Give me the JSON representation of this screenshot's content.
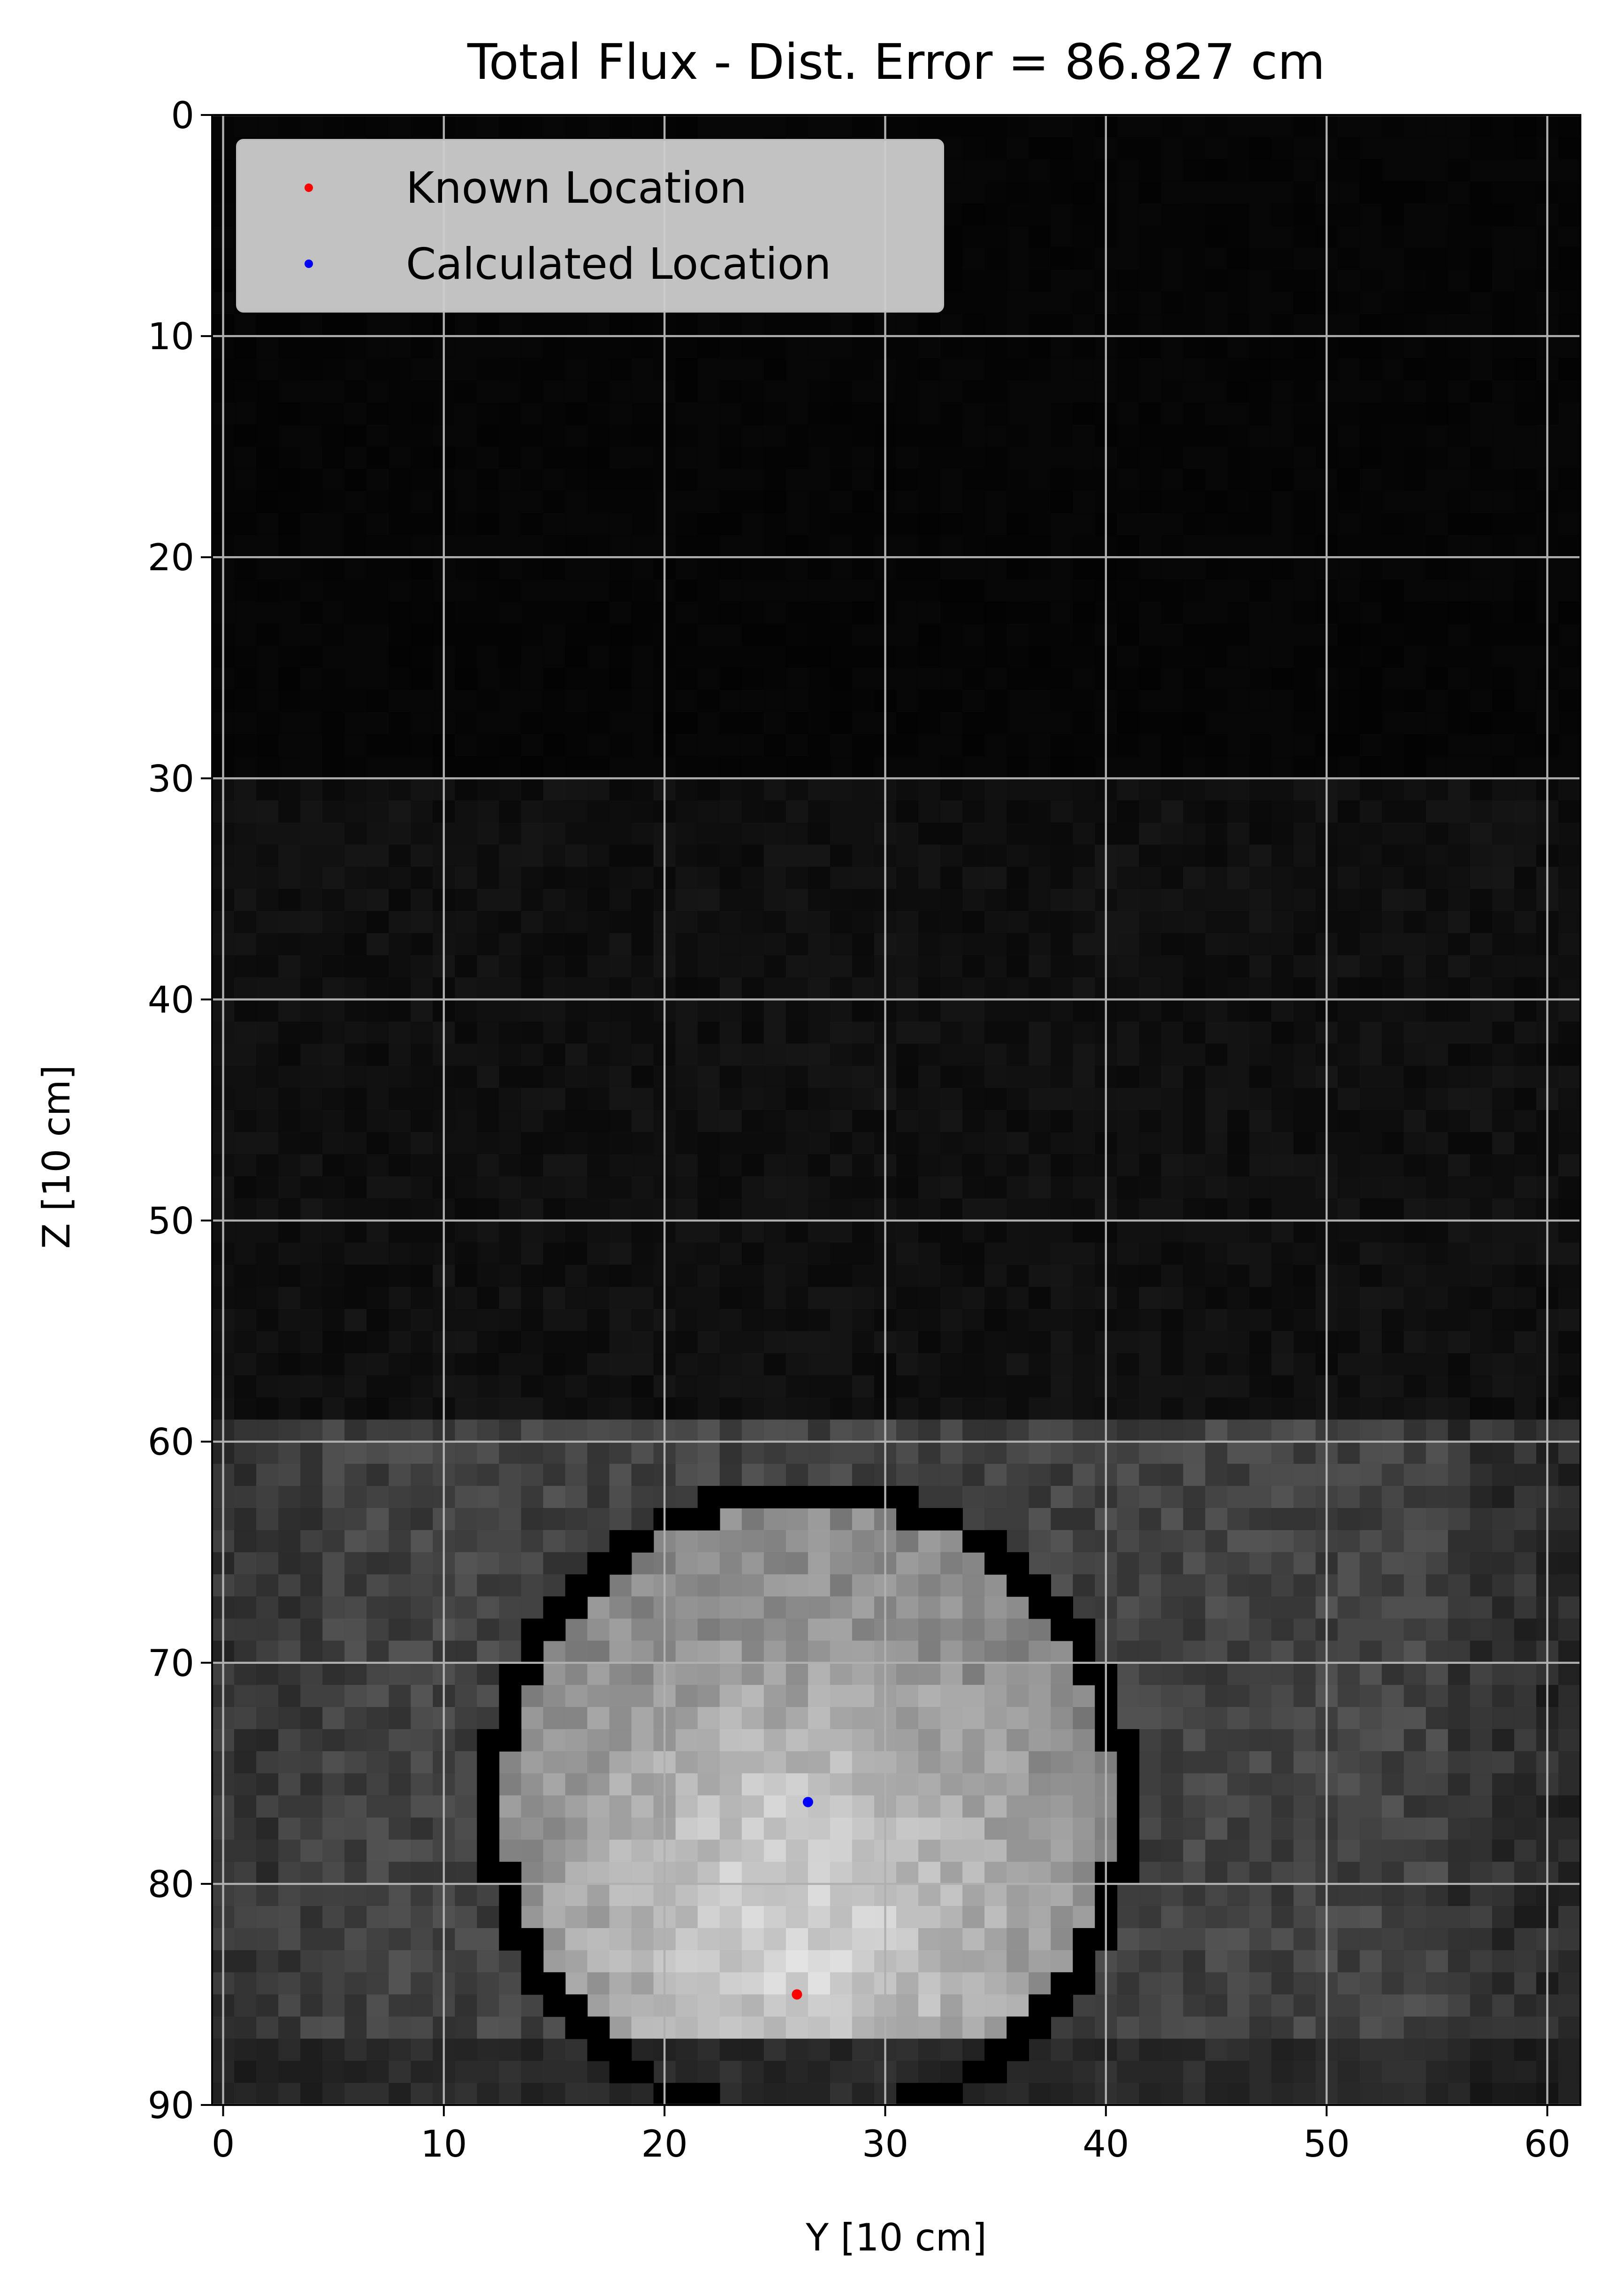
{
  "chart_data": {
    "type": "heatmap",
    "title": "Total Flux - Dist. Error = 86.827 cm",
    "xlabel": "Y [10 cm]",
    "ylabel": "Z [10 cm]",
    "xlim": [
      -0.5,
      61.5
    ],
    "ylim": [
      90,
      0
    ],
    "y_inverted": true,
    "x_ticks": [
      0,
      10,
      20,
      30,
      40,
      50,
      60
    ],
    "y_ticks": [
      0,
      10,
      20,
      30,
      40,
      50,
      60,
      70,
      80,
      90
    ],
    "grid": true,
    "legend_position": "top-left",
    "colormap": "gray",
    "background_color": "#000000",
    "heatmap_regions": [
      {
        "z_range": [
          0,
          30
        ],
        "y_range": [
          0,
          62
        ],
        "mean_intensity": 0.02,
        "noise": 0.008
      },
      {
        "z_range": [
          30,
          59
        ],
        "y_range": [
          0,
          62
        ],
        "mean_intensity": 0.06,
        "noise": 0.025
      },
      {
        "z_range": [
          59,
          87
        ],
        "y_range": [
          0,
          62
        ],
        "mean_intensity": 0.26,
        "noise": 0.07
      },
      {
        "z_range": [
          87,
          90
        ],
        "y_range": [
          0,
          62
        ],
        "mean_intensity": 0.16,
        "noise": 0.04
      }
    ],
    "bright_disk": {
      "center": [
        26.5,
        76.0
      ],
      "radius": 14.0,
      "peak_intensity": 0.92,
      "peak_at": [
        26.0,
        84.0
      ]
    },
    "ring_outline": {
      "center": [
        26.5,
        76.5
      ],
      "radius": 14.3,
      "color": "#000000"
    },
    "series": [
      {
        "name": "Known Location",
        "color": "#ff0000",
        "points": [
          {
            "x": 26.0,
            "y": 85.0
          }
        ]
      },
      {
        "name": "Calculated Location",
        "color": "#0000ff",
        "points": [
          {
            "x": 26.5,
            "y": 76.3
          }
        ]
      }
    ]
  }
}
